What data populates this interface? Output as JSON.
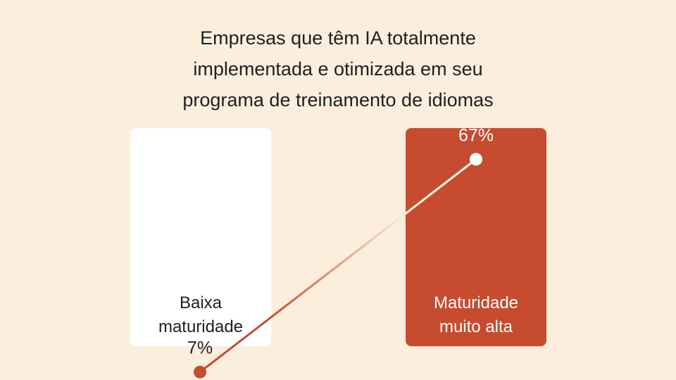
{
  "title_lines": [
    "Empresas que têm IA totalmente",
    "implementada e otimizada em seu",
    "programa de treinamento de idiomas"
  ],
  "colors": {
    "background": "#fbeedd",
    "accent": "#c64b2f",
    "panel_low": "#ffffff",
    "text": "#1f1f1f"
  },
  "chart_data": {
    "type": "line",
    "title": "Empresas que têm IA totalmente implementada e otimizada em seu programa de treinamento de idiomas",
    "categories": [
      "Baixa maturidade",
      "Maturidade muito alta"
    ],
    "category_lines": [
      [
        "Baixa",
        "maturidade"
      ],
      [
        "Maturidade",
        "muito alta"
      ]
    ],
    "values": [
      7,
      67
    ],
    "value_labels": [
      "7%",
      "67%"
    ],
    "unit": "%",
    "ylim": [
      0,
      100
    ],
    "grid": false,
    "legend": "none"
  }
}
